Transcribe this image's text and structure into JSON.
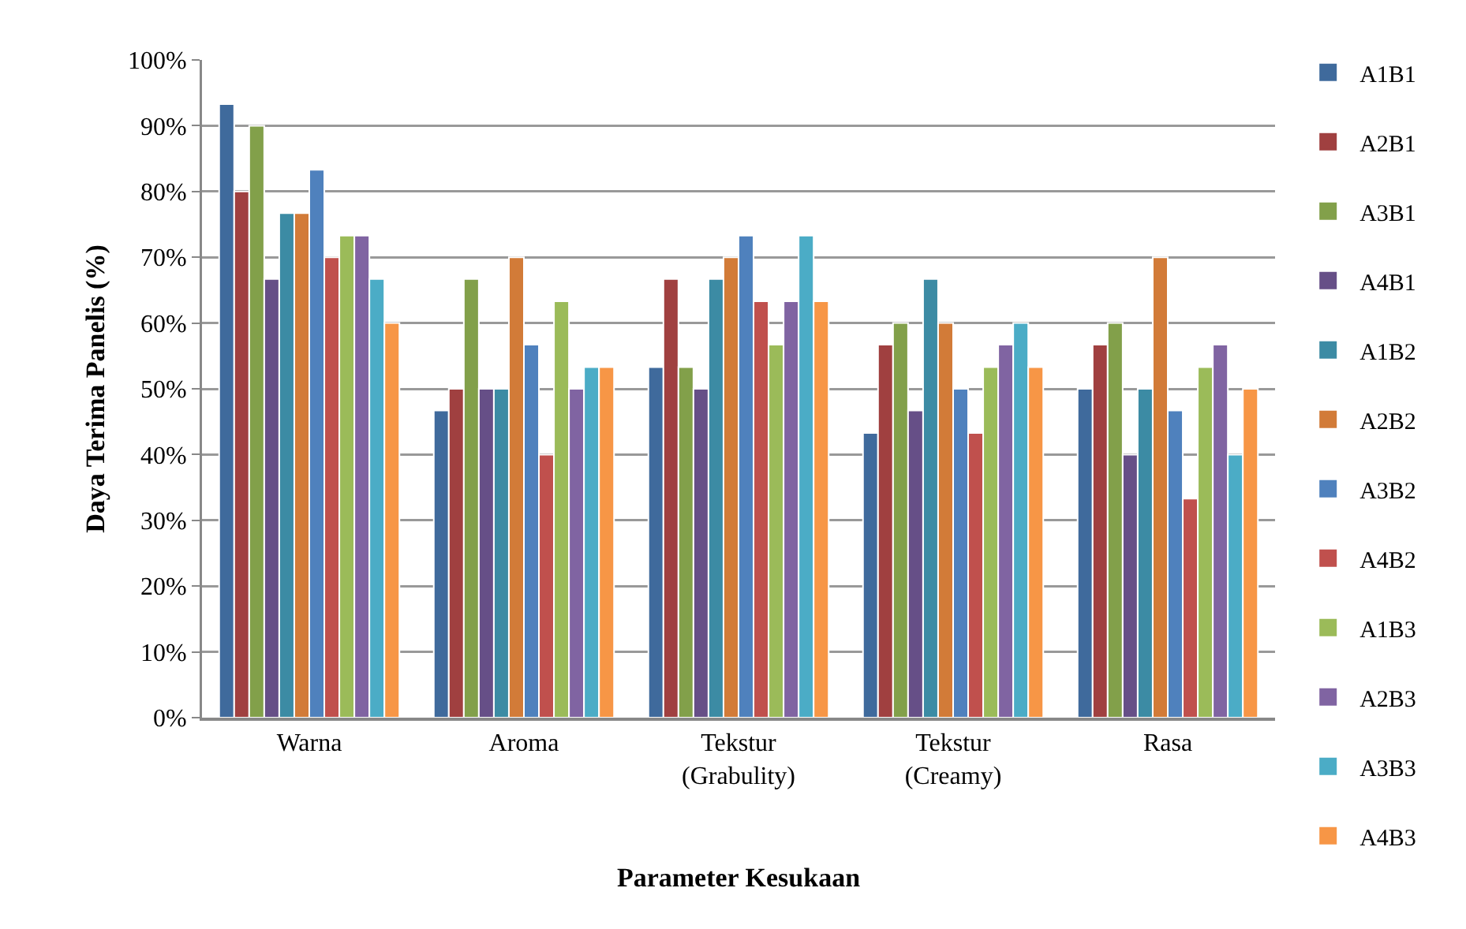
{
  "chart_data": {
    "type": "bar",
    "xlabel": "Parameter Kesukaan",
    "ylabel": "Daya Terima Panelis (%)",
    "categories": [
      "Warna",
      "Aroma",
      "Tekstur\n(Grabulity)",
      "Tekstur\n(Creamy)",
      "Rasa"
    ],
    "series": [
      {
        "name": "A1B1",
        "color": "#3f6a9c",
        "values": [
          93.3,
          46.7,
          53.3,
          43.3,
          50
        ]
      },
      {
        "name": "A2B1",
        "color": "#a04040",
        "values": [
          80,
          50,
          66.7,
          56.7,
          56.7
        ]
      },
      {
        "name": "A3B1",
        "color": "#82a04a",
        "values": [
          90,
          66.7,
          53.3,
          60,
          60
        ]
      },
      {
        "name": "A4B1",
        "color": "#664f87",
        "values": [
          66.7,
          50,
          50,
          46.7,
          40
        ]
      },
      {
        "name": "A1B2",
        "color": "#3c8ba4",
        "values": [
          76.7,
          50,
          66.7,
          66.7,
          50
        ]
      },
      {
        "name": "A2B2",
        "color": "#d27b38",
        "values": [
          76.7,
          70,
          70,
          60,
          70
        ]
      },
      {
        "name": "A3B2",
        "color": "#4f81bd",
        "values": [
          83.3,
          56.7,
          73.3,
          50,
          46.7
        ]
      },
      {
        "name": "A4B2",
        "color": "#c0504d",
        "values": [
          70,
          40,
          63.3,
          43.3,
          33.3
        ]
      },
      {
        "name": "A1B3",
        "color": "#9bbb59",
        "values": [
          73.3,
          63.3,
          56.7,
          53.3,
          53.3
        ]
      },
      {
        "name": "A2B3",
        "color": "#8064a2",
        "values": [
          73.3,
          50,
          63.3,
          56.7,
          56.7
        ]
      },
      {
        "name": "A3B3",
        "color": "#4bacc6",
        "values": [
          66.7,
          53.3,
          73.3,
          60,
          40
        ]
      },
      {
        "name": "A4B3",
        "color": "#f79646",
        "values": [
          60,
          53.3,
          63.3,
          53.3,
          50
        ]
      }
    ],
    "ylim": [
      0,
      100
    ],
    "yticks": [
      {
        "value": 0,
        "label": "0%"
      },
      {
        "value": 10,
        "label": "10%"
      },
      {
        "value": 20,
        "label": "20%"
      },
      {
        "value": 30,
        "label": "30%"
      },
      {
        "value": 40,
        "label": "40%"
      },
      {
        "value": 50,
        "label": "50%"
      },
      {
        "value": 60,
        "label": "60%"
      },
      {
        "value": 70,
        "label": "70%"
      },
      {
        "value": 80,
        "label": "80%"
      },
      {
        "value": 90,
        "label": "90%"
      },
      {
        "value": 100,
        "label": "100%"
      }
    ],
    "grid": "y",
    "legend": "right"
  }
}
